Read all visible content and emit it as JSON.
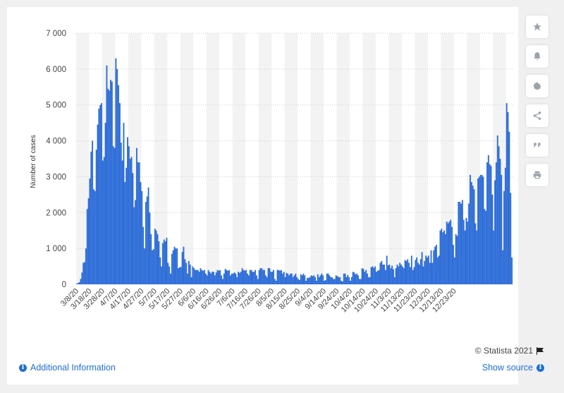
{
  "chart_data": {
    "type": "bar",
    "title": "",
    "xlabel": "",
    "ylabel": "Number of cases",
    "ylim": [
      0,
      7000
    ],
    "ytick_values": [
      0,
      1000,
      2000,
      3000,
      4000,
      5000,
      6000,
      7000
    ],
    "ytick_labels": [
      "0",
      "1 000",
      "2 000",
      "3 000",
      "4 000",
      "5 000",
      "6 000",
      "7 000"
    ],
    "xtick_labels": [
      "3/8/20",
      "3/18/20",
      "3/28/20",
      "4/7/20",
      "4/17/20",
      "4/27/20",
      "5/7/20",
      "5/17/20",
      "5/27/20",
      "6/6/20",
      "6/16/20",
      "6/26/20",
      "7/6/20",
      "7/16/20",
      "7/26/20",
      "8/5/20",
      "8/15/20",
      "8/25/20",
      "9/4/20",
      "9/14/20",
      "9/24/20",
      "10/4/20",
      "10/14/20",
      "10/24/20",
      "11/3/20",
      "11/13/20",
      "11/23/20",
      "12/3/20",
      "12/13/20",
      "12/23/20"
    ],
    "grid": true,
    "color": "#2f6ed8",
    "series": [
      {
        "values": [
          20,
          40,
          60,
          150,
          330,
          600,
          620,
          1000,
          2100,
          2400,
          2950,
          3700,
          4000,
          2650,
          2600,
          3750,
          4450,
          4900,
          5000,
          5050,
          3450,
          3550,
          4500,
          6100,
          5450,
          5400,
          5700,
          5650,
          3850,
          3800,
          6300,
          6000,
          5550,
          5050,
          3950,
          3450,
          4500,
          2850,
          3250,
          4100,
          3850,
          3500,
          3550,
          3100,
          2150,
          2350,
          3800,
          3400,
          3400,
          2850,
          2600,
          1600,
          1000,
          2300,
          2450,
          2700,
          2000,
          1400,
          950,
          980,
          1550,
          1500,
          1400,
          1200,
          750,
          500,
          1150,
          1250,
          1200,
          1300,
          600,
          500,
          300,
          850,
          950,
          1050,
          1000,
          1000,
          450,
          480,
          480,
          900,
          1050,
          700,
          600,
          300,
          650,
          550,
          200,
          500,
          450,
          400,
          400,
          400,
          350,
          450,
          400,
          380,
          400,
          300,
          250,
          400,
          350,
          300,
          350,
          350,
          250,
          330,
          400,
          380,
          400,
          250,
          150,
          300,
          430,
          400,
          380,
          400,
          250,
          300,
          300,
          330,
          300,
          200,
          350,
          320,
          350,
          450,
          400,
          380,
          400,
          300,
          250,
          400,
          400,
          350,
          350,
          400,
          250,
          150,
          400,
          450,
          450,
          400,
          400,
          250,
          200,
          450,
          450,
          350,
          350,
          400,
          150,
          100,
          400,
          400,
          380,
          400,
          300,
          350,
          200,
          320,
          300,
          250,
          300,
          300,
          200,
          250,
          300,
          200,
          150,
          120,
          280,
          250,
          300,
          250,
          100,
          180,
          180,
          200,
          250,
          230,
          250,
          200,
          100,
          280,
          200,
          250,
          300,
          250,
          100,
          120,
          300,
          300,
          250,
          200,
          200,
          150,
          150,
          250,
          230,
          200,
          200,
          100,
          80,
          300,
          300,
          200,
          260,
          200,
          100,
          200,
          350,
          330,
          280,
          300,
          250,
          150,
          150,
          450,
          430,
          350,
          400,
          300,
          200,
          200,
          480,
          500,
          460,
          500,
          350,
          380,
          400,
          600,
          650,
          550,
          550,
          400,
          800,
          530,
          550,
          450,
          520,
          420,
          200,
          450,
          550,
          500,
          600,
          550,
          500,
          450,
          680,
          650,
          700,
          600,
          480,
          800,
          400,
          480,
          680,
          750,
          600,
          550,
          700,
          900,
          500,
          650,
          800,
          750,
          800,
          600,
          950,
          600,
          950,
          1050,
          1100,
          750,
          800,
          1500,
          1550,
          1450,
          1500,
          1400,
          1750,
          1700,
          1750,
          1800,
          1600,
          1100,
          750,
          1400,
          1350,
          2300,
          2300,
          2250,
          2350,
          1800,
          1500,
          1850,
          1750,
          2250,
          3050,
          2850,
          2750,
          2650,
          1700,
          1500,
          2950,
          3000,
          3050,
          3050,
          3000,
          2100,
          2050,
          3400,
          3600,
          3350,
          3300,
          2500,
          1500,
          2900,
          3400,
          4150,
          3850,
          3500,
          3050,
          950,
          2600,
          3250,
          5050,
          4800,
          4250,
          2550,
          750
        ],
        "note": ""
      }
    ]
  },
  "credit": "© Statista 2021",
  "footer": {
    "additional_info": "Additional Information",
    "show_source": "Show source"
  },
  "toolbar_icons": [
    "star-icon",
    "bell-icon",
    "gear-icon",
    "share-icon",
    "quote-icon",
    "print-icon"
  ]
}
